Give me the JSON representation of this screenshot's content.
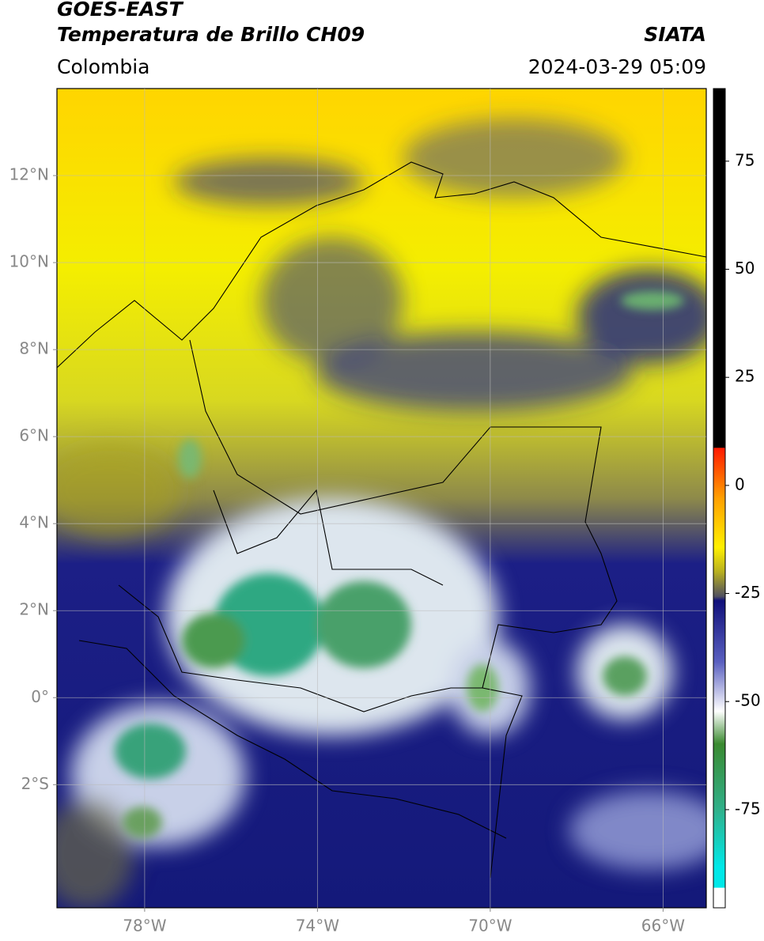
{
  "header": {
    "title": "GOES-EAST",
    "subtitle": "Temperatura de Brillo CH09",
    "source": "SIATA",
    "region": "Colombia",
    "timestamp": "2024-03-29 05:09"
  },
  "map": {
    "lonlim": [
      -80.03,
      -65
    ],
    "latlim": [
      -4.83,
      14
    ],
    "lonticks": [
      {
        "value": -78,
        "label": "78°W"
      },
      {
        "value": -74,
        "label": "74°W"
      },
      {
        "value": -70,
        "label": "70°W"
      },
      {
        "value": -66,
        "label": "66°W"
      }
    ],
    "latticks": [
      {
        "value": 12,
        "label": "12°N"
      },
      {
        "value": 10,
        "label": "10°N"
      },
      {
        "value": 8,
        "label": "8°N"
      },
      {
        "value": 6,
        "label": "6°N"
      },
      {
        "value": 4,
        "label": "4°N"
      },
      {
        "value": 2,
        "label": "2°N"
      },
      {
        "value": 0,
        "label": "0°"
      },
      {
        "value": -2,
        "label": "2°S"
      }
    ]
  },
  "colorbar": {
    "lim": [
      -97.7,
      91.8
    ],
    "ticks": [
      75,
      50,
      25,
      0,
      -25,
      -50,
      -75
    ]
  }
}
